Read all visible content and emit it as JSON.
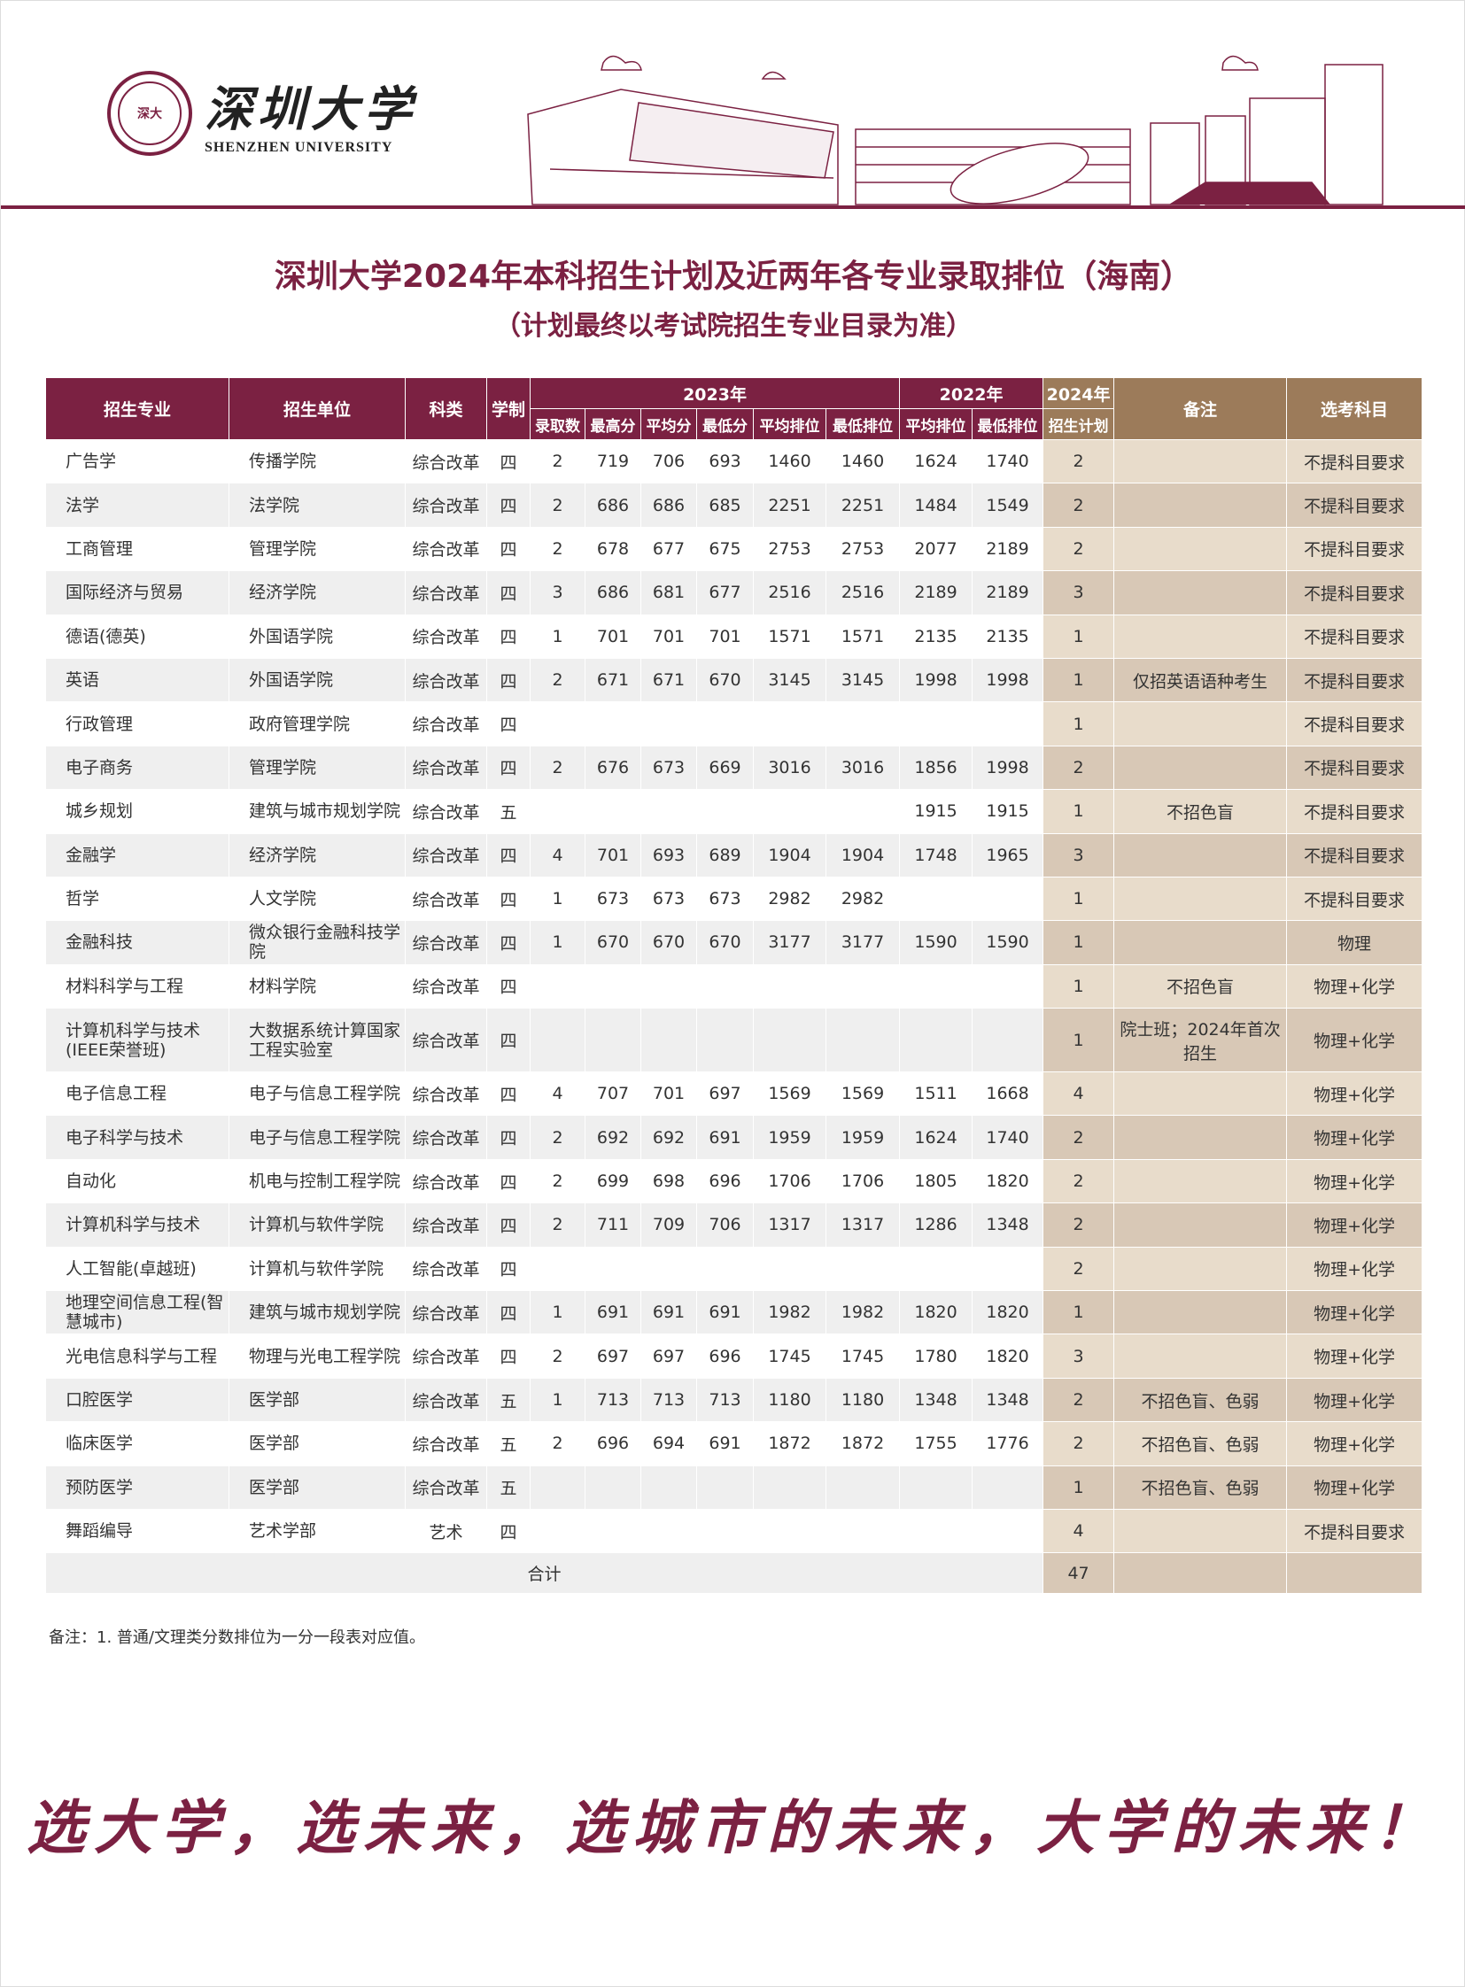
{
  "logo": {
    "cn": "深圳大学",
    "en": "SHENZHEN UNIVERSITY",
    "seal": "深大"
  },
  "title": "深圳大学2024年本科招生计划及近两年各专业录取排位（海南）",
  "subtitle": "（计划最终以考试院招生专业目录为准）",
  "colors": {
    "maroon": "#7b2142",
    "brown": "#9c7b5a",
    "beige": "#e8dccb",
    "beige_dark": "#d8c8b6"
  },
  "header": {
    "major": "招生专业",
    "unit": "招生单位",
    "type": "科类",
    "years": "学制",
    "y2023": "2023年",
    "y2022": "2022年",
    "y2024": "2024年",
    "note": "备注",
    "subject": "选考科目",
    "sub": [
      "录取数",
      "最高分",
      "平均分",
      "最低分",
      "平均排位",
      "最低排位",
      "平均排位",
      "最低排位",
      "招生计划"
    ]
  },
  "rows": [
    [
      "广告学",
      "传播学院",
      "综合改革",
      "四",
      "2",
      "719",
      "706",
      "693",
      "1460",
      "1460",
      "1624",
      "1740",
      "2",
      "",
      "不提科目要求"
    ],
    [
      "法学",
      "法学院",
      "综合改革",
      "四",
      "2",
      "686",
      "686",
      "685",
      "2251",
      "2251",
      "1484",
      "1549",
      "2",
      "",
      "不提科目要求"
    ],
    [
      "工商管理",
      "管理学院",
      "综合改革",
      "四",
      "2",
      "678",
      "677",
      "675",
      "2753",
      "2753",
      "2077",
      "2189",
      "2",
      "",
      "不提科目要求"
    ],
    [
      "国际经济与贸易",
      "经济学院",
      "综合改革",
      "四",
      "3",
      "686",
      "681",
      "677",
      "2516",
      "2516",
      "2189",
      "2189",
      "3",
      "",
      "不提科目要求"
    ],
    [
      "德语(德英)",
      "外国语学院",
      "综合改革",
      "四",
      "1",
      "701",
      "701",
      "701",
      "1571",
      "1571",
      "2135",
      "2135",
      "1",
      "",
      "不提科目要求"
    ],
    [
      "英语",
      "外国语学院",
      "综合改革",
      "四",
      "2",
      "671",
      "671",
      "670",
      "3145",
      "3145",
      "1998",
      "1998",
      "1",
      "仅招英语语种考生",
      "不提科目要求"
    ],
    [
      "行政管理",
      "政府管理学院",
      "综合改革",
      "四",
      "",
      "",
      "",
      "",
      "",
      "",
      "",
      "",
      "1",
      "",
      "不提科目要求"
    ],
    [
      "电子商务",
      "管理学院",
      "综合改革",
      "四",
      "2",
      "676",
      "673",
      "669",
      "3016",
      "3016",
      "1856",
      "1998",
      "2",
      "",
      "不提科目要求"
    ],
    [
      "城乡规划",
      "建筑与城市规划学院",
      "综合改革",
      "五",
      "",
      "",
      "",
      "",
      "",
      "",
      "1915",
      "1915",
      "1",
      "不招色盲",
      "不提科目要求"
    ],
    [
      "金融学",
      "经济学院",
      "综合改革",
      "四",
      "4",
      "701",
      "693",
      "689",
      "1904",
      "1904",
      "1748",
      "1965",
      "3",
      "",
      "不提科目要求"
    ],
    [
      "哲学",
      "人文学院",
      "综合改革",
      "四",
      "1",
      "673",
      "673",
      "673",
      "2982",
      "2982",
      "",
      "",
      "1",
      "",
      "不提科目要求"
    ],
    [
      "金融科技",
      "微众银行金融科技学院",
      "综合改革",
      "四",
      "1",
      "670",
      "670",
      "670",
      "3177",
      "3177",
      "1590",
      "1590",
      "1",
      "",
      "物理"
    ],
    [
      "材料科学与工程",
      "材料学院",
      "综合改革",
      "四",
      "",
      "",
      "",
      "",
      "",
      "",
      "",
      "",
      "1",
      "不招色盲",
      "物理+化学"
    ],
    [
      "计算机科学与技术(IEEE荣誉班)",
      "大数据系统计算国家工程实验室",
      "综合改革",
      "四",
      "",
      "",
      "",
      "",
      "",
      "",
      "",
      "",
      "1",
      "院士班；2024年首次招生",
      "物理+化学"
    ],
    [
      "电子信息工程",
      "电子与信息工程学院",
      "综合改革",
      "四",
      "4",
      "707",
      "701",
      "697",
      "1569",
      "1569",
      "1511",
      "1668",
      "4",
      "",
      "物理+化学"
    ],
    [
      "电子科学与技术",
      "电子与信息工程学院",
      "综合改革",
      "四",
      "2",
      "692",
      "692",
      "691",
      "1959",
      "1959",
      "1624",
      "1740",
      "2",
      "",
      "物理+化学"
    ],
    [
      "自动化",
      "机电与控制工程学院",
      "综合改革",
      "四",
      "2",
      "699",
      "698",
      "696",
      "1706",
      "1706",
      "1805",
      "1820",
      "2",
      "",
      "物理+化学"
    ],
    [
      "计算机科学与技术",
      "计算机与软件学院",
      "综合改革",
      "四",
      "2",
      "711",
      "709",
      "706",
      "1317",
      "1317",
      "1286",
      "1348",
      "2",
      "",
      "物理+化学"
    ],
    [
      "人工智能(卓越班)",
      "计算机与软件学院",
      "综合改革",
      "四",
      "",
      "",
      "",
      "",
      "",
      "",
      "",
      "",
      "2",
      "",
      "物理+化学"
    ],
    [
      "地理空间信息工程(智慧城市)",
      "建筑与城市规划学院",
      "综合改革",
      "四",
      "1",
      "691",
      "691",
      "691",
      "1982",
      "1982",
      "1820",
      "1820",
      "1",
      "",
      "物理+化学"
    ],
    [
      "光电信息科学与工程",
      "物理与光电工程学院",
      "综合改革",
      "四",
      "2",
      "697",
      "697",
      "696",
      "1745",
      "1745",
      "1780",
      "1820",
      "3",
      "",
      "物理+化学"
    ],
    [
      "口腔医学",
      "医学部",
      "综合改革",
      "五",
      "1",
      "713",
      "713",
      "713",
      "1180",
      "1180",
      "1348",
      "1348",
      "2",
      "不招色盲、色弱",
      "物理+化学"
    ],
    [
      "临床医学",
      "医学部",
      "综合改革",
      "五",
      "2",
      "696",
      "694",
      "691",
      "1872",
      "1872",
      "1755",
      "1776",
      "2",
      "不招色盲、色弱",
      "物理+化学"
    ],
    [
      "预防医学",
      "医学部",
      "综合改革",
      "五",
      "",
      "",
      "",
      "",
      "",
      "",
      "",
      "",
      "1",
      "不招色盲、色弱",
      "物理+化学"
    ],
    [
      "舞蹈编导",
      "艺术学部",
      "艺术",
      "四",
      "",
      "",
      "",
      "",
      "",
      "",
      "",
      "",
      "4",
      "",
      "不提科目要求"
    ]
  ],
  "total": {
    "label": "合计",
    "value": "47"
  },
  "footnote": "备注：1. 普通/文理类分数排位为一分一段表对应值。",
  "slogan": "选大学，选未来，选城市的未来，大学的未来！"
}
